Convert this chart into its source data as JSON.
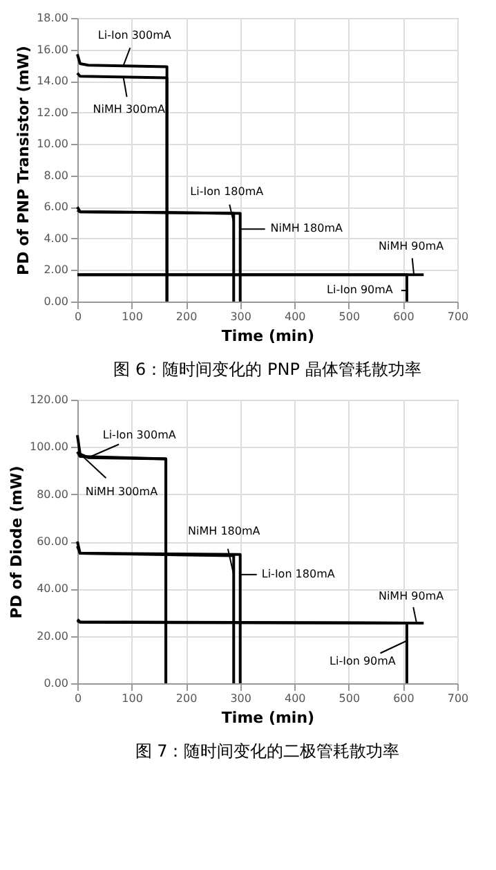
{
  "chart_data": [
    {
      "type": "line",
      "title": "图 6：随时间变化的 PNP 晶体管耗散功率",
      "xlabel": "Time (min)",
      "ylabel": "PD of PNP Transistor (mW)",
      "xlim": [
        0,
        700
      ],
      "xticks": [
        0,
        100,
        200,
        300,
        400,
        500,
        600,
        700
      ],
      "ylim": [
        0,
        18
      ],
      "yticks": [
        {
          "value": 0,
          "label": "0.00"
        },
        {
          "value": 2,
          "label": "2.00"
        },
        {
          "value": 4,
          "label": "4.00"
        },
        {
          "value": 6,
          "label": "6.00"
        },
        {
          "value": 8,
          "label": "8.00"
        },
        {
          "value": 10,
          "label": "10.00"
        },
        {
          "value": 12,
          "label": "12.00"
        },
        {
          "value": 14,
          "label": "14.00"
        },
        {
          "value": 16,
          "label": "16.00"
        },
        {
          "value": 18,
          "label": "18.00"
        }
      ],
      "grid": true,
      "legend": false,
      "marker": "none",
      "line_style": "solid",
      "series": [
        {
          "color": "#000000",
          "x": [
            0,
            5,
            20,
            165,
            165
          ],
          "values": [
            15.7,
            15.1,
            15.0,
            14.9,
            0
          ]
        },
        {
          "color": "#000000",
          "x": [
            0,
            5,
            165,
            165
          ],
          "values": [
            14.5,
            14.3,
            14.2,
            0
          ]
        },
        {
          "color": "#000000",
          "x": [
            0,
            5,
            288,
            288
          ],
          "values": [
            6.0,
            5.7,
            5.6,
            0
          ]
        },
        {
          "color": "#000000",
          "x": [
            0,
            5,
            300,
            300
          ],
          "values": [
            5.8,
            5.7,
            5.6,
            0
          ]
        },
        {
          "color": "#000000",
          "x": [
            0,
            638
          ],
          "values": [
            1.7,
            1.7
          ]
        },
        {
          "color": "#000000",
          "x": [
            0,
            607,
            607
          ],
          "values": [
            1.7,
            1.7,
            0
          ]
        }
      ],
      "annotations": [
        {
          "text": "Li-Ion 300mA",
          "x": 85,
          "y": 15.0
        },
        {
          "text": "NiMH 300mA",
          "x": 85,
          "y": 14.2
        },
        {
          "text": "Li-Ion 180mA",
          "x": 288,
          "y": 5.0
        },
        {
          "text": "NiMH 180mA",
          "x": 300,
          "y": 4.6
        },
        {
          "text": "NiMH 90mA",
          "x": 620,
          "y": 1.7
        },
        {
          "text": "Li-Ion 90mA",
          "x": 607,
          "y": 0.7
        }
      ]
    },
    {
      "type": "line",
      "title": "图 7：随时间变化的二极管耗散功率",
      "xlabel": "Time (min)",
      "ylabel": "PD of Diode (mW)",
      "xlim": [
        0,
        700
      ],
      "xticks": [
        0,
        100,
        200,
        300,
        400,
        500,
        600,
        700
      ],
      "ylim": [
        0,
        120
      ],
      "yticks": [
        {
          "value": 0,
          "label": "0.00"
        },
        {
          "value": 20,
          "label": "20.00"
        },
        {
          "value": 40,
          "label": "40.00"
        },
        {
          "value": 60,
          "label": "60.00"
        },
        {
          "value": 80,
          "label": "80.00"
        },
        {
          "value": 100,
          "label": "100.00"
        },
        {
          "value": 120,
          "label": "120.00"
        }
      ],
      "grid": true,
      "legend": false,
      "marker": "none",
      "line_style": "solid",
      "series": [
        {
          "color": "#000000",
          "x": [
            0,
            5,
            20,
            163,
            163
          ],
          "values": [
            105,
            97,
            95.5,
            95,
            0
          ]
        },
        {
          "color": "#000000",
          "x": [
            0,
            5,
            163,
            163
          ],
          "values": [
            98,
            96,
            95,
            0
          ]
        },
        {
          "color": "#000000",
          "x": [
            0,
            5,
            288,
            288
          ],
          "values": [
            60,
            55,
            54,
            0
          ]
        },
        {
          "color": "#000000",
          "x": [
            0,
            5,
            300,
            300
          ],
          "values": [
            58,
            55,
            54.5,
            0
          ]
        },
        {
          "color": "#000000",
          "x": [
            0,
            5,
            638
          ],
          "values": [
            27,
            26,
            25.5
          ]
        },
        {
          "color": "#000000",
          "x": [
            0,
            5,
            607,
            607
          ],
          "values": [
            26.5,
            25.8,
            25.5,
            0
          ]
        }
      ],
      "annotations": [
        {
          "text": "Li-Ion 300mA",
          "x": 20,
          "y": 95.5
        },
        {
          "text": "NiMH 300mA",
          "x": 10,
          "y": 96
        },
        {
          "text": "NiMH 180mA",
          "x": 288,
          "y": 46
        },
        {
          "text": "Li-Ion 180mA",
          "x": 300,
          "y": 46
        },
        {
          "text": "NiMH 90mA",
          "x": 625,
          "y": 25.5
        },
        {
          "text": "Li-Ion 90mA",
          "x": 607,
          "y": 18
        }
      ]
    }
  ]
}
